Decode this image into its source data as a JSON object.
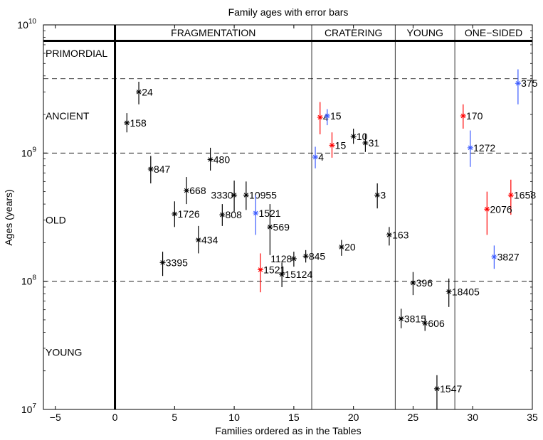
{
  "chart_data": {
    "type": "scatter",
    "title": "Family ages with error bars",
    "xlabel": "Families ordered as in the Tables",
    "ylabel": "Ages (years)",
    "xlim": [
      -6,
      35
    ],
    "ylim_log10": [
      7,
      10
    ],
    "x_ticks": [
      -5,
      0,
      5,
      10,
      15,
      20,
      25,
      30,
      35
    ],
    "x_tick_labels": [
      "−5",
      "0",
      "5",
      "10",
      "15",
      "20",
      "25",
      "30",
      "35"
    ],
    "y_ticks": [
      {
        "exp": 7,
        "base": "10",
        "power": "7"
      },
      {
        "exp": 8,
        "base": "10",
        "power": "8"
      },
      {
        "exp": 9,
        "base": "10",
        "power": "9"
      },
      {
        "exp": 10,
        "base": "10",
        "power": "10"
      }
    ],
    "dashed_lines_years": [
      3800000000,
      1000000000,
      100000000
    ],
    "solid_line_years": 7500000000,
    "category_dividers_x": [
      16.5,
      23.5,
      28.5
    ],
    "thick_vertical_x": 0,
    "age_labels": [
      {
        "text": "PRIMORDIAL",
        "y": 6000000000
      },
      {
        "text": "ANCIENT",
        "y": 1950000000
      },
      {
        "text": "OLD",
        "y": 300000000
      },
      {
        "text": "YOUNG",
        "y": 28000000
      }
    ],
    "categories": [
      {
        "text": "FRAGMENTATION",
        "x": 8.25
      },
      {
        "text": "CRATERING",
        "x": 20
      },
      {
        "text": "YOUNG",
        "x": 26
      },
      {
        "text": "ONE−SIDED",
        "x": 31.75
      }
    ],
    "colors": {
      "black": "#000000",
      "red": "#ff0000",
      "blue": "#3b5bff"
    },
    "series": [
      {
        "name": "24",
        "x": 2,
        "y": 3000000000,
        "lo": 2400000000,
        "hi": 3600000000,
        "color": "black",
        "label_dx": 0.25
      },
      {
        "name": "158",
        "x": 1,
        "y": 1720000000,
        "lo": 1450000000,
        "hi": 2050000000,
        "color": "black",
        "label_dx": 0.25
      },
      {
        "name": "847",
        "x": 3,
        "y": 750000000,
        "lo": 580000000,
        "hi": 950000000,
        "color": "black",
        "label_dx": 0.25
      },
      {
        "name": "480",
        "x": 8,
        "y": 890000000,
        "lo": 730000000,
        "hi": 1100000000,
        "color": "black",
        "label_dx": 0.25
      },
      {
        "name": "668",
        "x": 6,
        "y": 510000000,
        "lo": 400000000,
        "hi": 650000000,
        "color": "black",
        "label_dx": 0.25
      },
      {
        "name": "1726",
        "x": 5,
        "y": 335000000,
        "lo": 265000000,
        "hi": 420000000,
        "color": "black",
        "label_dx": 0.25
      },
      {
        "name": "3330",
        "x": 10,
        "y": 470000000,
        "lo": 350000000,
        "hi": 610000000,
        "color": "black",
        "label_dx": -1.95
      },
      {
        "name": "10955",
        "x": 11,
        "y": 470000000,
        "lo": 360000000,
        "hi": 600000000,
        "color": "black",
        "label_dx": 0.25
      },
      {
        "name": "808",
        "x": 9,
        "y": 330000000,
        "lo": 270000000,
        "hi": 400000000,
        "color": "black",
        "label_dx": 0.25
      },
      {
        "name": "1521",
        "x": 11.8,
        "y": 340000000,
        "lo": 230000000,
        "hi": 470000000,
        "color": "blue",
        "label_dx": 0.25
      },
      {
        "name": "569",
        "x": 13,
        "y": 265000000,
        "lo": 160000000,
        "hi": 400000000,
        "color": "black",
        "label_dx": 0.25
      },
      {
        "name": "434",
        "x": 7,
        "y": 210000000,
        "lo": 165000000,
        "hi": 270000000,
        "color": "black",
        "label_dx": 0.25
      },
      {
        "name": "3395",
        "x": 4,
        "y": 140000000,
        "lo": 110000000,
        "hi": 170000000,
        "color": "black",
        "label_dx": 0.25
      },
      {
        "name": "1521",
        "x": 12.2,
        "y": 123000000,
        "lo": 82000000,
        "hi": 165000000,
        "color": "red",
        "label_dx": 0.25
      },
      {
        "name": "1128",
        "x": 15,
        "y": 150000000,
        "lo": 130000000,
        "hi": 170000000,
        "color": "black",
        "label_dx": -1.95
      },
      {
        "name": "15124",
        "x": 14,
        "y": 113000000,
        "lo": 90000000,
        "hi": 140000000,
        "color": "black",
        "label_dx": 0.25
      },
      {
        "name": "845",
        "x": 16,
        "y": 157000000,
        "lo": 140000000,
        "hi": 175000000,
        "color": "black",
        "label_dx": 0.25
      },
      {
        "name": "4",
        "x": 17.2,
        "y": 1900000000,
        "lo": 1400000000,
        "hi": 2500000000,
        "color": "red",
        "label_dx": 0.25
      },
      {
        "name": "15",
        "x": 17.8,
        "y": 1950000000,
        "lo": 1650000000,
        "hi": 2200000000,
        "color": "blue",
        "label_dx": 0.25
      },
      {
        "name": "15",
        "x": 18.2,
        "y": 1150000000,
        "lo": 920000000,
        "hi": 1450000000,
        "color": "red",
        "label_dx": 0.25
      },
      {
        "name": "4",
        "x": 16.8,
        "y": 930000000,
        "lo": 760000000,
        "hi": 1120000000,
        "color": "blue",
        "label_dx": 0.25
      },
      {
        "name": "10",
        "x": 20,
        "y": 1350000000,
        "lo": 1180000000,
        "hi": 1550000000,
        "color": "black",
        "label_dx": 0.25
      },
      {
        "name": "31",
        "x": 21,
        "y": 1200000000,
        "lo": 1020000000,
        "hi": 1400000000,
        "color": "black",
        "label_dx": 0.25
      },
      {
        "name": "3",
        "x": 22,
        "y": 470000000,
        "lo": 370000000,
        "hi": 580000000,
        "color": "black",
        "label_dx": 0.25
      },
      {
        "name": "163",
        "x": 23,
        "y": 230000000,
        "lo": 190000000,
        "hi": 265000000,
        "color": "black",
        "label_dx": 0.25
      },
      {
        "name": "20",
        "x": 19,
        "y": 185000000,
        "lo": 158000000,
        "hi": 210000000,
        "color": "black",
        "label_dx": 0.25
      },
      {
        "name": "396",
        "x": 25,
        "y": 97000000,
        "lo": 78000000,
        "hi": 118000000,
        "color": "black",
        "label_dx": 0.25
      },
      {
        "name": "3815",
        "x": 24,
        "y": 51000000,
        "lo": 43000000,
        "hi": 61000000,
        "color": "black",
        "label_dx": 0.25
      },
      {
        "name": "606",
        "x": 26,
        "y": 47000000,
        "lo": 41000000,
        "hi": 54000000,
        "color": "black",
        "label_dx": 0.25
      },
      {
        "name": "18405",
        "x": 28,
        "y": 83000000,
        "lo": 63000000,
        "hi": 105000000,
        "color": "black",
        "label_dx": 0.25
      },
      {
        "name": "1547",
        "x": 27,
        "y": 14500000,
        "lo": 10000000,
        "hi": 18500000,
        "color": "black",
        "label_dx": 0.25
      },
      {
        "name": "170",
        "x": 29.2,
        "y": 1950000000,
        "lo": 1550000000,
        "hi": 2400000000,
        "color": "red",
        "label_dx": 0.25
      },
      {
        "name": "1272",
        "x": 29.8,
        "y": 1100000000,
        "lo": 780000000,
        "hi": 1500000000,
        "color": "blue",
        "label_dx": 0.25
      },
      {
        "name": "375",
        "x": 33.8,
        "y": 3500000000,
        "lo": 2400000000,
        "hi": 4500000000,
        "color": "blue",
        "label_dx": 0.25
      },
      {
        "name": "1658",
        "x": 33.2,
        "y": 470000000,
        "lo": 330000000,
        "hi": 620000000,
        "color": "red",
        "label_dx": 0.25
      },
      {
        "name": "2076",
        "x": 31.2,
        "y": 365000000,
        "lo": 230000000,
        "hi": 500000000,
        "color": "red",
        "label_dx": 0.25
      },
      {
        "name": "3827",
        "x": 31.8,
        "y": 155000000,
        "lo": 125000000,
        "hi": 190000000,
        "color": "blue",
        "label_dx": 0.25
      }
    ]
  }
}
